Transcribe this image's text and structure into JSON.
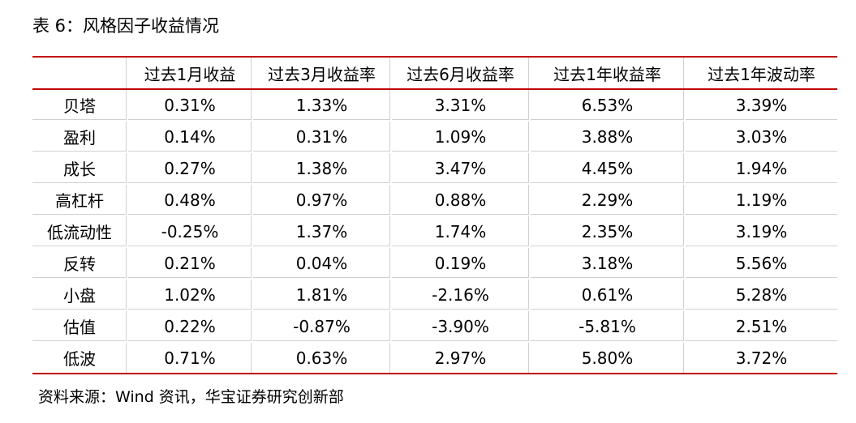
{
  "title": "表 6：风格因子收益情况",
  "table": {
    "headers": [
      "",
      "过去1月收益",
      "过去3月收益率",
      "过去6月收益率",
      "过去1年收益率",
      "过去1年波动率"
    ],
    "rows": [
      {
        "factor": "贝塔",
        "values": [
          "0.31%",
          "1.33%",
          "3.31%",
          "6.53%",
          "3.39%"
        ]
      },
      {
        "factor": "盈利",
        "values": [
          "0.14%",
          "0.31%",
          "1.09%",
          "3.88%",
          "3.03%"
        ]
      },
      {
        "factor": "成长",
        "values": [
          "0.27%",
          "1.38%",
          "3.47%",
          "4.45%",
          "1.94%"
        ]
      },
      {
        "factor": "高杠杆",
        "values": [
          "0.48%",
          "0.97%",
          "0.88%",
          "2.29%",
          "1.19%"
        ]
      },
      {
        "factor": "低流动性",
        "values": [
          "-0.25%",
          "1.37%",
          "1.74%",
          "2.35%",
          "3.19%"
        ]
      },
      {
        "factor": "反转",
        "values": [
          "0.21%",
          "0.04%",
          "0.19%",
          "3.18%",
          "5.56%"
        ]
      },
      {
        "factor": "小盘",
        "values": [
          "1.02%",
          "1.81%",
          "-2.16%",
          "0.61%",
          "5.28%"
        ]
      },
      {
        "factor": "估值",
        "values": [
          "0.22%",
          "-0.87%",
          "-3.90%",
          "-5.81%",
          "2.51%"
        ]
      },
      {
        "factor": "低波",
        "values": [
          "0.71%",
          "0.63%",
          "2.97%",
          "5.80%",
          "3.72%"
        ]
      }
    ]
  },
  "source": "资料来源：Wind 资讯，华宝证券研究创新部",
  "colors": {
    "rule": "#c00000",
    "grid": "#d0d0d0"
  }
}
